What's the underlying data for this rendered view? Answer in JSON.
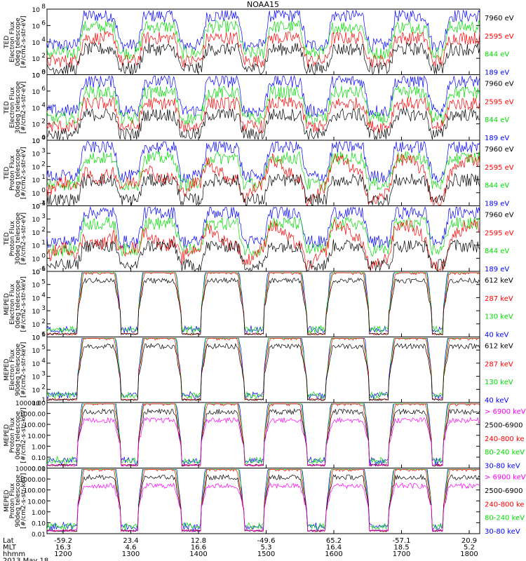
{
  "title": "NOAA15",
  "colors": {
    "blue": "#0000ff",
    "red": "#ff0000",
    "green": "#00dd00",
    "black": "#000000",
    "magenta": "#ff00ff"
  },
  "chart_data": {
    "type": "line",
    "panels": [
      {
        "ylabel": [
          "TED",
          "Electron Flux",
          "0deg telescope",
          "[#/cm2-s-str-eV]"
        ],
        "yscale": "log",
        "yticks": [
          "10^0",
          "10^2",
          "10^4",
          "10^6",
          "10^8"
        ],
        "ylim": [
          1,
          100000000
        ],
        "legend": [
          {
            "label": "7960 eV",
            "color": "#000000"
          },
          {
            "label": "2595 eV",
            "color": "#ff0000"
          },
          {
            "label": "844 eV",
            "color": "#00dd00"
          },
          {
            "label": "189 eV",
            "color": "#0000ff"
          }
        ]
      },
      {
        "ylabel": [
          "TED",
          "Electron Flux",
          "30deg telescope",
          "[#/cm2-s-str-eV]"
        ],
        "yscale": "log",
        "yticks": [
          "10^0",
          "10^2",
          "10^4",
          "10^6",
          "10^8"
        ],
        "ylim": [
          1,
          100000000
        ],
        "legend": [
          {
            "label": "7960 eV",
            "color": "#000000"
          },
          {
            "label": "2595 eV",
            "color": "#ff0000"
          },
          {
            "label": "844 eV",
            "color": "#00dd00"
          },
          {
            "label": "189 eV",
            "color": "#0000ff"
          }
        ]
      },
      {
        "ylabel": [
          "TED",
          "Proton Flux",
          "0deg telescope",
          "[#/cm2-s-str-eV]"
        ],
        "yscale": "log",
        "yticks": [
          "10^-1",
          "10^0",
          "10^1",
          "10^2",
          "10^3",
          "10^4"
        ],
        "ylim": [
          0.1,
          10000
        ],
        "legend": [
          {
            "label": "7960 eV",
            "color": "#000000"
          },
          {
            "label": "2595 eV",
            "color": "#ff0000"
          },
          {
            "label": "844 eV",
            "color": "#00dd00"
          },
          {
            "label": "189 eV",
            "color": "#0000ff"
          }
        ]
      },
      {
        "ylabel": [
          "TED",
          "Proton Flux",
          "30deg telescope",
          "[#/cm2-s-str-eV]"
        ],
        "yscale": "log",
        "yticks": [
          "10^-1",
          "10^0",
          "10^1",
          "10^2",
          "10^3",
          "10^4"
        ],
        "ylim": [
          0.1,
          10000
        ],
        "legend": [
          {
            "label": "7960 eV",
            "color": "#000000"
          },
          {
            "label": "2595 eV",
            "color": "#ff0000"
          },
          {
            "label": "844 eV",
            "color": "#00dd00"
          },
          {
            "label": "189 eV",
            "color": "#0000ff"
          }
        ]
      },
      {
        "ylabel": [
          "MEPED",
          "Electron Flux",
          "0deg telescope",
          "[#/cm2-s-str-keV]"
        ],
        "yscale": "log",
        "yticks": [
          "10^1",
          "10^2",
          "10^3",
          "10^4",
          "10^5",
          "10^6"
        ],
        "ylim": [
          10,
          1000000
        ],
        "legend": [
          {
            "label": "612 keV",
            "color": "#000000"
          },
          {
            "label": "287 keV",
            "color": "#ff0000"
          },
          {
            "label": "130 keV",
            "color": "#00dd00"
          },
          {
            "label": "40 keV",
            "color": "#0000ff"
          }
        ]
      },
      {
        "ylabel": [
          "MEPED",
          "Electron Flux",
          "90deg telescope",
          "[#/cm2-s-str-keV]"
        ],
        "yscale": "log",
        "yticks": [
          "10^1",
          "10^2",
          "10^3",
          "10^4",
          "10^5",
          "10^6"
        ],
        "ylim": [
          10,
          1000000
        ],
        "legend": [
          {
            "label": "612 keV",
            "color": "#000000"
          },
          {
            "label": "287 keV",
            "color": "#ff0000"
          },
          {
            "label": "130 keV",
            "color": "#00dd00"
          },
          {
            "label": "40 keV",
            "color": "#0000ff"
          }
        ]
      },
      {
        "ylabel": [
          "MEPED",
          "Proton Flux",
          "0deg telescope",
          "[#/cm2-s-str-keV]"
        ],
        "yscale": "log",
        "yticks": [
          "0.01",
          "0.10",
          "1.00",
          "10.00",
          "100.00",
          "1000.00",
          "10000.00"
        ],
        "ylim": [
          0.01,
          10000
        ],
        "legend": [
          {
            "label": "> 6900 keV",
            "color": "#ff00ff"
          },
          {
            "label": "2500-6900",
            "color": "#000000"
          },
          {
            "label": "240-800 ke",
            "color": "#ff0000"
          },
          {
            "label": "80-240 keV",
            "color": "#00dd00"
          },
          {
            "label": "30-80 keV",
            "color": "#0000ff"
          }
        ]
      },
      {
        "ylabel": [
          "MEPED",
          "Proton Flux",
          "90deg telescope",
          "[#/cm2-s-str-keV]"
        ],
        "yscale": "log",
        "yticks": [
          "0.01",
          "0.10",
          "1.00",
          "10.00",
          "100.00",
          "1000.00",
          "10000.00"
        ],
        "ylim": [
          0.01,
          10000
        ],
        "legend": [
          {
            "label": "> 6900 keV",
            "color": "#ff00ff"
          },
          {
            "label": "2500-6900",
            "color": "#000000"
          },
          {
            "label": "240-800 ke",
            "color": "#ff0000"
          },
          {
            "label": "80-240 keV",
            "color": "#00dd00"
          },
          {
            "label": "30-80 keV",
            "color": "#0000ff"
          }
        ]
      }
    ],
    "xaxis": {
      "rows": [
        {
          "name": "Lat",
          "values": [
            "-59.2",
            "23.4",
            "12.8",
            "-49.6",
            "65.2",
            "-57.1",
            "20.9"
          ]
        },
        {
          "name": "MLT",
          "values": [
            "16.3",
            "4.6",
            "16.6",
            "5.3",
            "16.4",
            "18.5",
            "5.2"
          ]
        },
        {
          "name": "hhmm",
          "values": [
            "1200",
            "1300",
            "1400",
            "1500",
            "1600",
            "1700",
            "1800"
          ]
        }
      ],
      "date": "2013 May 18"
    }
  }
}
